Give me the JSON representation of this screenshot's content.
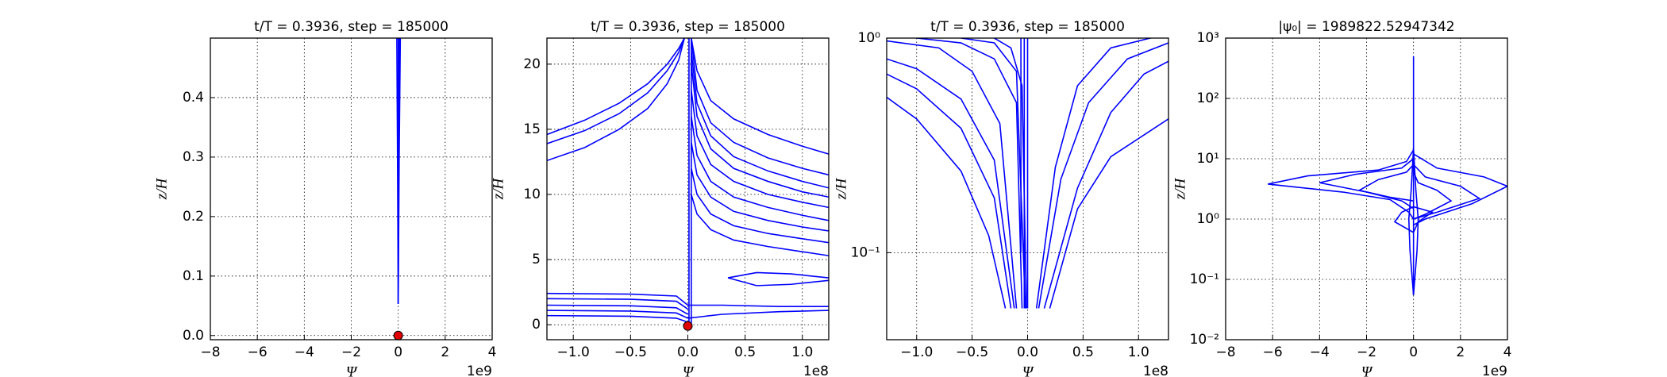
{
  "chart_data": [
    {
      "type": "line",
      "title": "t/T = 0.3936, step = 185000",
      "xlabel": "Ψ",
      "ylabel": "z/H",
      "x_offset_label": "1e9",
      "xlim": [
        -8,
        4
      ],
      "ylim": [
        -0.007,
        0.5
      ],
      "ylog": false,
      "grid": true,
      "color": "#0000ff",
      "xticks": [
        {
          "value": -8,
          "label": "−8"
        },
        {
          "value": -6,
          "label": "−6"
        },
        {
          "value": -4,
          "label": "−4"
        },
        {
          "value": -2,
          "label": "−2"
        },
        0,
        2,
        4
      ],
      "yticks": [
        {
          "value": 0,
          "label": "0.0"
        },
        0.1,
        0.2,
        0.3,
        0.4
      ],
      "series": [
        {
          "x": [
            0,
            0,
            0
          ],
          "y": [
            0.053,
            0.3,
            0.5
          ]
        },
        {
          "x": [
            0,
            0.02,
            0.05
          ],
          "y": [
            0.053,
            0.3,
            0.5
          ]
        },
        {
          "x": [
            0,
            0.04,
            0.09
          ],
          "y": [
            0.053,
            0.3,
            0.5
          ]
        },
        {
          "x": [
            0,
            -0.03,
            -0.06
          ],
          "y": [
            0.053,
            0.3,
            0.5
          ]
        }
      ],
      "points": {
        "x": [
          0
        ],
        "y": [
          0
        ],
        "color": "#e00000"
      }
    },
    {
      "type": "line",
      "title": "t/T = 0.3936, step = 185000",
      "xlabel": "Ψ",
      "ylabel": "z/H",
      "x_offset_label": "1e8",
      "xlim": [
        -1.23,
        1.23
      ],
      "ylim": [
        -1.15,
        22
      ],
      "ylog": false,
      "grid": true,
      "color": "#0000ff",
      "xticks": [
        {
          "value": -1,
          "label": "−1.0"
        },
        {
          "value": -0.5,
          "label": "−0.5"
        },
        {
          "value": 0,
          "label": "0.0"
        },
        0.5,
        {
          "value": 1,
          "label": "1.0"
        }
      ],
      "yticks": [
        0,
        5,
        10,
        15,
        20
      ],
      "series": [
        {
          "x": [
            -1.23,
            -0.9,
            -0.6,
            -0.35,
            -0.18,
            -0.08,
            -0.03
          ],
          "y": [
            14.6,
            15.7,
            17.0,
            18.5,
            20.0,
            21.2,
            22
          ]
        },
        {
          "x": [
            -1.23,
            -0.9,
            -0.6,
            -0.35,
            -0.18,
            -0.08,
            -0.03
          ],
          "y": [
            13.9,
            14.9,
            16.2,
            17.8,
            19.5,
            20.9,
            22
          ]
        },
        {
          "x": [
            -1.23,
            -0.9,
            -0.6,
            -0.35,
            -0.18,
            -0.08,
            -0.03
          ],
          "y": [
            12.6,
            13.6,
            15.0,
            16.6,
            18.5,
            20.3,
            22
          ]
        },
        {
          "x": [
            0.03,
            0.08,
            0.2,
            0.4,
            0.7,
            1.0,
            1.23
          ],
          "y": [
            22,
            19.5,
            17.2,
            15.8,
            14.6,
            13.7,
            13.1
          ]
        },
        {
          "x": [
            0.03,
            0.08,
            0.2,
            0.4,
            0.7,
            1.0,
            1.23
          ],
          "y": [
            22,
            18,
            15.5,
            14,
            12.8,
            12,
            11.5
          ]
        },
        {
          "x": [
            0.03,
            0.08,
            0.2,
            0.4,
            0.7,
            1.0,
            1.23
          ],
          "y": [
            21,
            17,
            14.5,
            12.9,
            11.8,
            11,
            10.5
          ]
        },
        {
          "x": [
            0.03,
            0.08,
            0.2,
            0.4,
            0.7,
            1.0,
            1.23
          ],
          "y": [
            20,
            16,
            13.5,
            12,
            11,
            10.2,
            9.8
          ]
        },
        {
          "x": [
            0.03,
            0.08,
            0.2,
            0.4,
            0.7,
            1.0,
            1.23
          ],
          "y": [
            18,
            14.5,
            12.3,
            11,
            10,
            9.4,
            9
          ]
        },
        {
          "x": [
            0.03,
            0.08,
            0.2,
            0.4,
            0.7,
            1.0,
            1.23
          ],
          "y": [
            16,
            13,
            11,
            9.8,
            9,
            8.4,
            8
          ]
        },
        {
          "x": [
            0.03,
            0.08,
            0.2,
            0.4,
            0.7,
            1.0,
            1.23
          ],
          "y": [
            14,
            11.5,
            9.8,
            8.7,
            8,
            7.5,
            7.2
          ]
        },
        {
          "x": [
            0.03,
            0.08,
            0.2,
            0.4,
            0.7,
            1.0,
            1.23
          ],
          "y": [
            12,
            10,
            8.5,
            7.6,
            7,
            6.6,
            6.3
          ]
        },
        {
          "x": [
            0.03,
            0.08,
            0.2,
            0.4,
            0.7,
            1.0,
            1.23
          ],
          "y": [
            10,
            8.5,
            7.3,
            6.5,
            6,
            5.6,
            5.3
          ]
        },
        {
          "x": [
            0.01,
            0.01
          ],
          "y": [
            0,
            22
          ]
        },
        {
          "x": [
            0.03,
            0.03
          ],
          "y": [
            0,
            22
          ]
        },
        {
          "x": [
            -1.23,
            -0.5,
            -0.1,
            0
          ],
          "y": [
            2.4,
            2.35,
            2.2,
            1.5
          ]
        },
        {
          "x": [
            -1.23,
            -0.5,
            -0.1,
            0
          ],
          "y": [
            2.0,
            1.95,
            1.8,
            1.2
          ]
        },
        {
          "x": [
            -1.23,
            -0.5,
            -0.1,
            0
          ],
          "y": [
            1.5,
            1.45,
            1.3,
            0.8
          ]
        },
        {
          "x": [
            -1.23,
            -0.5,
            -0.1,
            0
          ],
          "y": [
            1.1,
            1.05,
            0.9,
            0.5
          ]
        },
        {
          "x": [
            -1.23,
            -0.5,
            -0.1,
            0
          ],
          "y": [
            0.7,
            0.65,
            0.5,
            0.2
          ]
        },
        {
          "x": [
            0,
            0.3,
            0.8,
            1.23
          ],
          "y": [
            1.5,
            1.5,
            1.4,
            1.4
          ]
        },
        {
          "x": [
            0,
            0.3,
            0.8,
            1.23
          ],
          "y": [
            0.5,
            0.8,
            1.0,
            1.1
          ]
        },
        {
          "x": [
            0.35,
            0.6,
            0.9,
            1.23
          ],
          "y": [
            3.6,
            3.0,
            3.1,
            3.4
          ]
        },
        {
          "x": [
            0.35,
            0.6,
            0.9,
            1.23
          ],
          "y": [
            3.6,
            4.0,
            3.9,
            3.6
          ]
        }
      ],
      "points": {
        "x": [
          0
        ],
        "y": [
          -0.1
        ],
        "color": "#e00000"
      }
    },
    {
      "type": "line",
      "title": "t/T = 0.3936, step = 185000",
      "xlabel": "Ψ",
      "ylabel": "z/H",
      "x_offset_label": "1e8",
      "xlim": [
        -1.27,
        1.27
      ],
      "ylim": [
        0.0393,
        1
      ],
      "ylog": true,
      "grid": true,
      "color": "#0000ff",
      "xticks": [
        {
          "value": -1,
          "label": "−1.0"
        },
        {
          "value": -0.5,
          "label": "−0.5"
        },
        {
          "value": 0,
          "label": "0.0"
        },
        0.5,
        {
          "value": 1,
          "label": "1.0"
        }
      ],
      "yticks": [
        {
          "value": 0.1,
          "label": "10⁻¹"
        },
        {
          "value": 1,
          "label": "10⁰"
        }
      ],
      "series": [
        {
          "x": [
            -1.27,
            -1.0,
            -0.6,
            -0.35,
            -0.2
          ],
          "y": [
            0.53,
            0.42,
            0.24,
            0.12,
            0.055
          ]
        },
        {
          "x": [
            -1.27,
            -1.0,
            -0.6,
            -0.3,
            -0.15
          ],
          "y": [
            0.68,
            0.58,
            0.38,
            0.18,
            0.055
          ]
        },
        {
          "x": [
            -1.27,
            -1.0,
            -0.6,
            -0.3,
            -0.12
          ],
          "y": [
            0.8,
            0.72,
            0.52,
            0.27,
            0.055
          ]
        },
        {
          "x": [
            -1.27,
            -0.8,
            -0.5,
            -0.25,
            -0.1
          ],
          "y": [
            0.97,
            0.9,
            0.7,
            0.4,
            0.055
          ]
        },
        {
          "x": [
            -1.0,
            -0.6,
            -0.3,
            -0.1,
            -0.05
          ],
          "y": [
            1,
            0.95,
            0.8,
            0.5,
            0.055
          ]
        },
        {
          "x": [
            -0.6,
            -0.3,
            -0.1,
            -0.02
          ],
          "y": [
            1,
            0.95,
            0.7,
            0.055
          ]
        },
        {
          "x": [
            -0.3,
            -0.15,
            -0.05,
            -0.01
          ],
          "y": [
            1,
            0.9,
            0.6,
            0.055
          ]
        },
        {
          "x": [
            0,
            0
          ],
          "y": [
            0.055,
            1
          ]
        },
        {
          "x": [
            -0.03,
            -0.03
          ],
          "y": [
            0.055,
            1
          ]
        },
        {
          "x": [
            -0.06,
            -0.06
          ],
          "y": [
            0.1,
            1
          ]
        },
        {
          "x": [
            0.2,
            0.45,
            0.75,
            1.27
          ],
          "y": [
            0.055,
            0.16,
            0.28,
            0.42
          ]
        },
        {
          "x": [
            0.15,
            0.45,
            0.75,
            1.05,
            1.27
          ],
          "y": [
            0.055,
            0.2,
            0.45,
            0.68,
            0.78
          ]
        },
        {
          "x": [
            0.1,
            0.3,
            0.55,
            0.9,
            1.27
          ],
          "y": [
            0.055,
            0.22,
            0.5,
            0.8,
            0.95
          ]
        },
        {
          "x": [
            0.08,
            0.25,
            0.45,
            0.75,
            1.27
          ],
          "y": [
            0.055,
            0.25,
            0.6,
            0.9,
            1.05
          ]
        }
      ]
    },
    {
      "type": "line",
      "title": "|ψ₀| = 1989822.52947342",
      "xlabel": "Ψ",
      "ylabel": "z/H",
      "x_offset_label": "1e9",
      "xlim": [
        -8,
        4
      ],
      "ylim": [
        0.01,
        1000
      ],
      "ylog": true,
      "grid": true,
      "color": "#0000ff",
      "xticks": [
        {
          "value": -8,
          "label": "−8"
        },
        {
          "value": -6,
          "label": "−6"
        },
        {
          "value": -4,
          "label": "−4"
        },
        {
          "value": -2,
          "label": "−2"
        },
        0,
        2,
        4
      ],
      "yticks": [
        {
          "value": 0.01,
          "label": "10⁻²"
        },
        {
          "value": 0.1,
          "label": "10⁻¹"
        },
        {
          "value": 1,
          "label": "10⁰"
        },
        {
          "value": 10,
          "label": "10¹"
        },
        {
          "value": 100,
          "label": "10²"
        },
        {
          "value": 1000,
          "label": "10³"
        }
      ],
      "series": [
        {
          "x": [
            0,
            0
          ],
          "y": [
            0.055,
            500
          ]
        },
        {
          "x": [
            0,
            0.15,
            0.2,
            0.1,
            0
          ],
          "y": [
            0.055,
            0.3,
            1,
            3,
            15
          ]
        },
        {
          "x": [
            0,
            -0.15,
            -0.2,
            -0.1,
            0
          ],
          "y": [
            0.055,
            0.3,
            1,
            3,
            15
          ]
        },
        {
          "x": [
            0,
            -0.2,
            -1,
            -3,
            -6.2,
            -4.5,
            -1.5,
            -0.3,
            0
          ],
          "y": [
            1,
            1.3,
            2.1,
            2.8,
            3.8,
            5.2,
            6.5,
            9,
            14
          ]
        },
        {
          "x": [
            0,
            -0.5,
            -2,
            -4,
            -2.5,
            -0.5,
            0
          ],
          "y": [
            1.5,
            2,
            2.8,
            4,
            5.5,
            7,
            10
          ]
        },
        {
          "x": [
            0,
            -1,
            -2.3,
            -1.5,
            -0.3,
            0
          ],
          "y": [
            2,
            2.3,
            3,
            4.5,
            6,
            8
          ]
        },
        {
          "x": [
            0,
            0.5,
            2.5,
            4,
            3,
            1,
            0
          ],
          "y": [
            0.8,
            1,
            1.8,
            3.5,
            5,
            7,
            12
          ]
        },
        {
          "x": [
            0,
            1,
            2.8,
            2,
            0.5,
            0
          ],
          "y": [
            1,
            1.3,
            2.2,
            3.5,
            5,
            8
          ]
        },
        {
          "x": [
            0,
            0.5,
            1.6,
            1,
            0.2,
            0
          ],
          "y": [
            1,
            1.2,
            2,
            3,
            4,
            6
          ]
        },
        {
          "x": [
            0,
            -0.8,
            -0.5,
            0,
            0.8,
            0.2,
            0
          ],
          "y": [
            0.6,
            0.9,
            1.3,
            1.6,
            1.3,
            0.9,
            0.6
          ]
        }
      ]
    }
  ]
}
